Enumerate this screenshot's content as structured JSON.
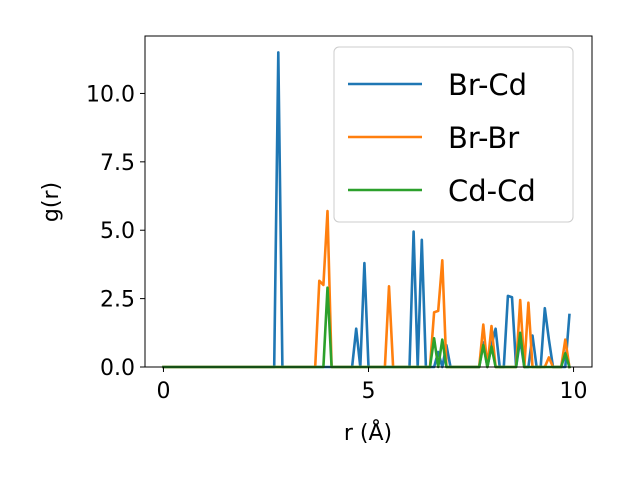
{
  "chart_data": {
    "type": "line",
    "xlabel": "r (Å)",
    "ylabel": "g(r)",
    "xlim": [
      -0.45,
      10.45
    ],
    "ylim": [
      0,
      12.1
    ],
    "xticks": [
      0,
      5,
      10
    ],
    "xtick_labels": [
      "0",
      "5",
      "10"
    ],
    "yticks": [
      0,
      2.5,
      5,
      7.5,
      10
    ],
    "ytick_labels": [
      "0.0",
      "2.5",
      "5.0",
      "7.5",
      "10.0"
    ],
    "grid": false,
    "legend_position": "top-right",
    "series": [
      {
        "name": "Br-Cd",
        "color": "#1f77b4",
        "x": [
          0,
          2.7,
          2.8,
          2.9,
          4.6,
          4.7,
          4.8,
          4.9,
          5.0,
          6.0,
          6.1,
          6.2,
          6.3,
          6.4,
          6.6,
          6.7,
          6.8,
          6.9,
          7.0,
          7.7,
          7.8,
          7.9,
          8.0,
          8.1,
          8.2,
          8.3,
          8.4,
          8.5,
          8.6,
          8.7,
          8.8,
          8.9,
          9.0,
          9.1,
          9.2,
          9.3,
          9.4,
          9.5,
          9.6,
          9.7,
          9.8,
          9.9
        ],
        "y": [
          0,
          0,
          11.5,
          0,
          0,
          1.4,
          0,
          3.8,
          0,
          0,
          4.95,
          0,
          4.65,
          0,
          0,
          0.55,
          0,
          0.8,
          0,
          0,
          0.9,
          0,
          0.8,
          1.4,
          0,
          0,
          2.6,
          2.55,
          0,
          1.0,
          0,
          0,
          1.15,
          0,
          0,
          2.15,
          1.0,
          0,
          0,
          0,
          0,
          1.9
        ]
      },
      {
        "name": "Br-Br",
        "color": "#ff7f0e",
        "x": [
          0,
          3.7,
          3.8,
          3.9,
          4.0,
          4.1,
          5.4,
          5.5,
          5.6,
          6.5,
          6.6,
          6.7,
          6.8,
          6.9,
          7.0,
          7.7,
          7.8,
          7.9,
          8.0,
          8.1,
          8.6,
          8.7,
          8.8,
          8.9,
          9.0,
          9.3,
          9.4,
          9.5,
          9.6,
          9.7,
          9.8,
          9.9
        ],
        "y": [
          0,
          0,
          3.15,
          3.0,
          5.7,
          0,
          0,
          2.95,
          0,
          0,
          2.0,
          2.05,
          3.9,
          0,
          0,
          0,
          1.55,
          0,
          1.5,
          0,
          0,
          2.45,
          0,
          2.35,
          0,
          0,
          0.35,
          0,
          0,
          0,
          1.0,
          0
        ]
      },
      {
        "name": "Cd-Cd",
        "color": "#2ca02c",
        "x": [
          0,
          3.9,
          4.0,
          4.1,
          6.5,
          6.6,
          6.7,
          6.8,
          6.9,
          7.7,
          7.8,
          7.9,
          8.0,
          8.1,
          8.6,
          8.7,
          8.8,
          9.0,
          9.7,
          9.8,
          9.9
        ],
        "y": [
          0,
          0,
          2.9,
          0,
          0,
          1.05,
          0,
          1.0,
          0,
          0,
          0.8,
          0,
          0.75,
          0,
          0,
          1.25,
          0,
          0,
          0,
          0.5,
          0
        ]
      }
    ]
  }
}
